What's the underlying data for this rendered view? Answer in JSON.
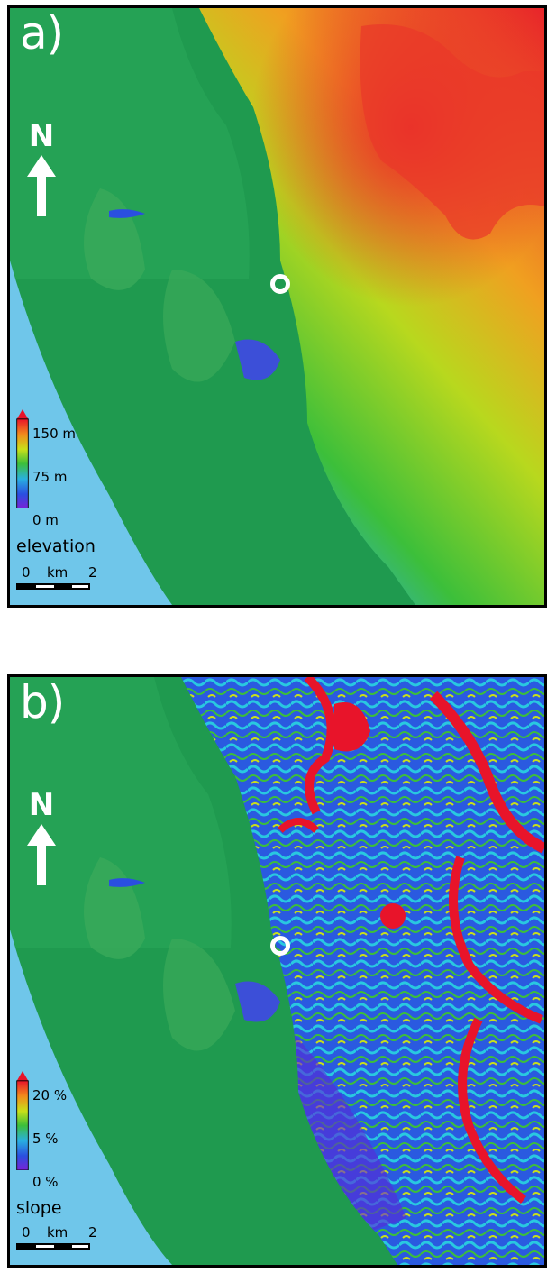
{
  "panel_a": {
    "label": "a)",
    "north_label": "N",
    "legend": {
      "title": "elevation",
      "ticks": [
        "150 m",
        "75 m",
        "0 m"
      ],
      "colors": [
        "#e8142a",
        "#f08a1c",
        "#c8e01a",
        "#3cbf3a",
        "#29b0e0",
        "#2a4fe0",
        "#7a22d6"
      ]
    },
    "scale": {
      "start": "0",
      "unit": "km",
      "end": "2"
    },
    "colors": {
      "sea": "#6fc6ea",
      "lowland": "#1f9a4f",
      "land_high": "#e8322a"
    }
  },
  "panel_b": {
    "label": "b)",
    "north_label": "N",
    "legend": {
      "title": "slope",
      "ticks": [
        "20 %",
        "5 %",
        "0 %"
      ],
      "colors": [
        "#e8142a",
        "#f08a1c",
        "#c8e01a",
        "#3cbf3a",
        "#29b0e0",
        "#2a4fe0",
        "#7a22d6"
      ]
    },
    "scale": {
      "start": "0",
      "unit": "km",
      "end": "2"
    },
    "colors": {
      "sea": "#6fc6ea",
      "lowland": "#1f9a4f",
      "steep": "#e8142a"
    }
  }
}
